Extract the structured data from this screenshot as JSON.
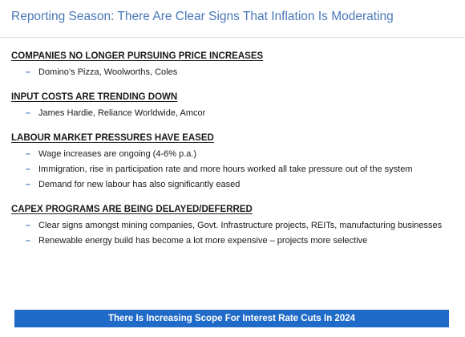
{
  "slide": {
    "title": "Reporting Season: There Are Clear Signs That Inflation Is Moderating",
    "accent_color": "#4a78b8",
    "banner_color": "#1f6bc7"
  },
  "sections": [
    {
      "heading": "COMPANIES NO LONGER PURSUING PRICE INCREASES",
      "bullets": [
        "Domino’s Pizza, Woolworths, Coles"
      ]
    },
    {
      "heading": "INPUT COSTS ARE TRENDING DOWN",
      "bullets": [
        "James Hardie, Reliance Worldwide, Amcor"
      ]
    },
    {
      "heading": "LABOUR MARKET PRESSURES HAVE EASED",
      "bullets": [
        "Wage increases are ongoing (4-6% p.a.)",
        "Immigration, rise in participation rate and more hours worked all take pressure out of the system",
        "Demand for new labour has also significantly eased"
      ]
    },
    {
      "heading": "CAPEX PROGRAMS ARE BEING DELAYED/DEFERRED",
      "bullets": [
        "Clear signs amongst mining companies, Govt. Infrastructure projects, REITs, manufacturing businesses",
        "Renewable energy build has become a lot more expensive – projects more selective"
      ]
    }
  ],
  "bullet_marker": "–",
  "banner": {
    "text": "There Is Increasing Scope For Interest Rate Cuts In 2024"
  }
}
